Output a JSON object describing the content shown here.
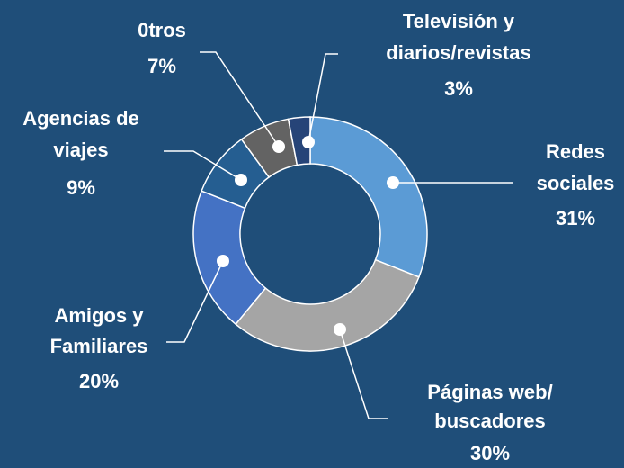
{
  "chart_data": {
    "type": "donut",
    "categories": [
      [
        "Redes",
        "sociales"
      ],
      [
        "Páginas web/",
        "buscadores"
      ],
      [
        "Amigos y",
        "Familiares"
      ],
      [
        "Agencias de",
        "viajes"
      ],
      [
        "0tros"
      ],
      [
        "Televisión y",
        "diarios/revistas"
      ]
    ],
    "values": [
      31,
      30,
      20,
      9,
      7,
      3
    ],
    "value_labels": [
      "31%",
      "30%",
      "20%",
      "9%",
      "7%",
      "3%"
    ],
    "colors": [
      "#5b9bd5",
      "#a5a5a5",
      "#4472c4",
      "#255e91",
      "#636363",
      "#264478"
    ]
  }
}
